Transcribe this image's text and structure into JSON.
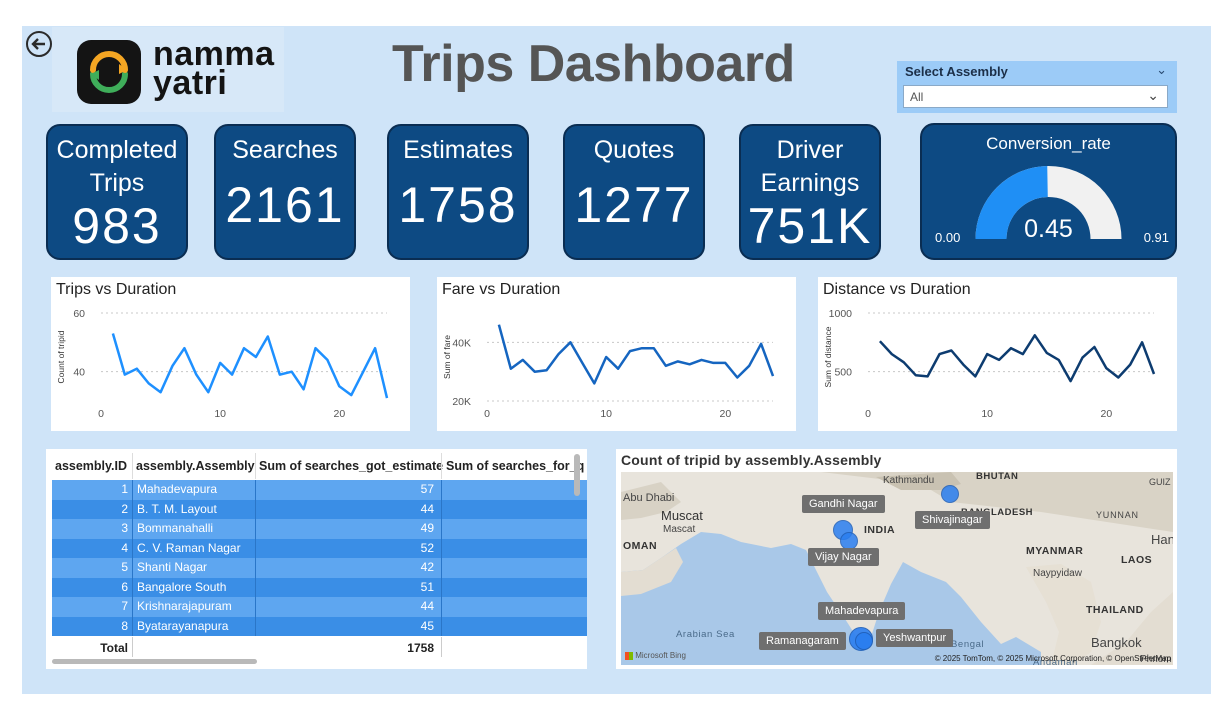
{
  "header": {
    "title": "Trips Dashboard",
    "logo_line1": "namma",
    "logo_line2": "yatri",
    "back_icon": "back-arrow-icon"
  },
  "slicer": {
    "label": "Select Assembly",
    "value": "All"
  },
  "cards": [
    {
      "label": "Completed\nTrips",
      "value": "983"
    },
    {
      "label": "Searches",
      "value": "2161"
    },
    {
      "label": "Estimates",
      "value": "1758"
    },
    {
      "label": "Quotes",
      "value": "1277"
    },
    {
      "label": "Driver\nEarnings",
      "value": "751K"
    }
  ],
  "gauge": {
    "title": "Conversion_rate",
    "value_label": "0.45",
    "min_label": "0.00",
    "max_label": "0.91",
    "value": 0.45,
    "min": 0,
    "max": 0.91,
    "colors": {
      "fill": "#1f8ff5",
      "track": "#f1f1f1"
    }
  },
  "chart_data": [
    {
      "type": "line",
      "title": "Trips vs Duration",
      "xlabel": "",
      "ylabel": "Count of tripid",
      "xlim": [
        0,
        24
      ],
      "ylim": [
        30,
        60
      ],
      "xticks": [
        0,
        10,
        20
      ],
      "yticks": [
        40,
        60
      ],
      "ytick_labels": [
        "40",
        "60"
      ],
      "color": "#1e90ff",
      "x": [
        1,
        2,
        3,
        4,
        5,
        6,
        7,
        8,
        9,
        10,
        11,
        12,
        13,
        14,
        15,
        16,
        17,
        18,
        19,
        20,
        21,
        22,
        23,
        24
      ],
      "values": [
        53,
        39,
        41,
        36,
        33,
        42,
        48,
        39,
        33,
        43,
        39,
        48,
        45,
        52,
        39,
        40,
        34,
        48,
        44,
        35,
        32,
        40,
        48,
        31
      ]
    },
    {
      "type": "line",
      "title": "Fare vs Duration",
      "xlabel": "",
      "ylabel": "Sum of fare",
      "xlim": [
        0,
        24
      ],
      "ylim": [
        20000,
        50000
      ],
      "xticks": [
        0,
        10,
        20
      ],
      "yticks": [
        20000,
        40000
      ],
      "ytick_labels": [
        "20K",
        "40K"
      ],
      "color": "#1565c0",
      "x": [
        1,
        2,
        3,
        4,
        5,
        6,
        7,
        8,
        9,
        10,
        11,
        12,
        13,
        14,
        15,
        16,
        17,
        18,
        19,
        20,
        21,
        22,
        23,
        24
      ],
      "values": [
        46000,
        31000,
        34000,
        30000,
        30500,
        36000,
        40000,
        33000,
        26000,
        35000,
        31000,
        37000,
        38000,
        38000,
        32000,
        33500,
        32500,
        34000,
        33000,
        33000,
        28000,
        32000,
        39500,
        28500
      ]
    },
    {
      "type": "line",
      "title": "Distance vs Duration",
      "xlabel": "",
      "ylabel": "Sum of distance",
      "xlim": [
        0,
        24
      ],
      "ylim": [
        250,
        1000
      ],
      "xticks": [
        0,
        10,
        20
      ],
      "yticks": [
        500,
        1000
      ],
      "ytick_labels": [
        "500",
        "1000"
      ],
      "color": "#0d3c70",
      "x": [
        1,
        2,
        3,
        4,
        5,
        6,
        7,
        8,
        9,
        10,
        11,
        12,
        13,
        14,
        15,
        16,
        17,
        18,
        19,
        20,
        21,
        22,
        23,
        24
      ],
      "values": [
        760,
        650,
        580,
        470,
        460,
        650,
        680,
        560,
        460,
        650,
        600,
        700,
        650,
        810,
        660,
        600,
        420,
        620,
        710,
        530,
        450,
        560,
        750,
        480
      ]
    }
  ],
  "table": {
    "columns": [
      "assembly.ID",
      "assembly.Assembly",
      "Sum of searches_got_estimate",
      "Sum of searches_for_q"
    ],
    "rows": [
      {
        "id": "1",
        "assembly": "Mahadevapura",
        "estimate": "57"
      },
      {
        "id": "2",
        "assembly": "B. T. M. Layout",
        "estimate": "44"
      },
      {
        "id": "3",
        "assembly": "Bommanahalli",
        "estimate": "49"
      },
      {
        "id": "4",
        "assembly": "C. V. Raman Nagar",
        "estimate": "52"
      },
      {
        "id": "5",
        "assembly": "Shanti Nagar",
        "estimate": "42"
      },
      {
        "id": "6",
        "assembly": "Bangalore South",
        "estimate": "51"
      },
      {
        "id": "7",
        "assembly": "Krishnarajapuram",
        "estimate": "44"
      },
      {
        "id": "8",
        "assembly": "Byatarayanapura",
        "estimate": "45"
      }
    ],
    "total_label": "Total",
    "total_estimate": "1758",
    "colors": {
      "row_dark": "#3a8ee6",
      "row_light": "#5ea6f0",
      "separator": "#2a76c8"
    }
  },
  "map": {
    "title": "Count of tripid by assembly.Assembly",
    "bubble_labels": [
      "Gandhi Nagar",
      "Shivajinagar",
      "Vijay Nagar",
      "Mahadevapura",
      "Ramanagaram",
      "Yeshwantpur"
    ],
    "place_names": [
      "Kathmandu",
      "Muscat",
      "Mascat",
      "Abu Dhabi",
      "OMAN",
      "INDIA",
      "BHUTAN",
      "BANGLADESH",
      "MYANMAR",
      "LAOS",
      "Naypyidaw",
      "THAILAND",
      "Bangkok",
      "Arabian Sea",
      "Bengal",
      "Andaman",
      "YUNNAN",
      "GUIZ",
      "Hano",
      "Phnom Pe"
    ],
    "attribution": "© 2025 TomTom, © 2025 Microsoft Corporation, © OpenStreetMap",
    "bing_label": "Microsoft Bing",
    "colors": {
      "bubble": "#2a7ef0",
      "water": "#a9c8e8",
      "land": "#e8e4dc"
    }
  }
}
